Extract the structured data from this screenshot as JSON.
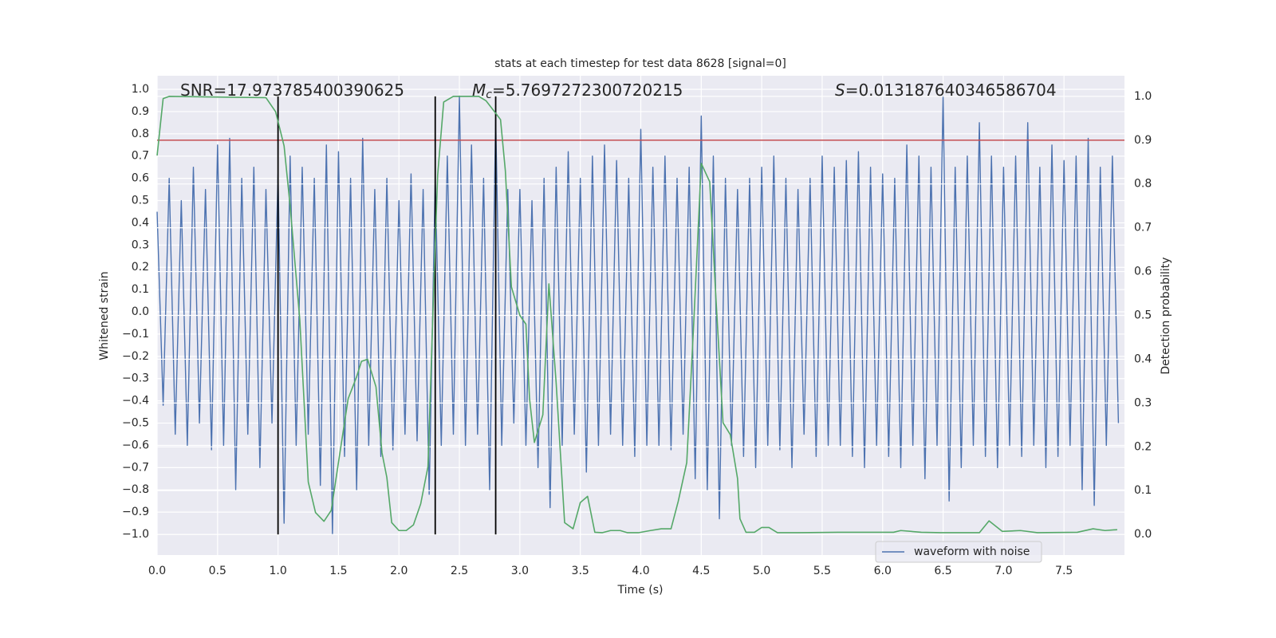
{
  "chart_data": {
    "type": "line",
    "title": "stats at each timestep for test data 8628 [signal=0]",
    "xlabel": "Time (s)",
    "ylabel": "Whitened strain",
    "y2label": "Detection probability",
    "annotations": [
      {
        "text": "SNR=17.973785400390625"
      },
      {
        "symbol": "M",
        "sub": "c",
        "text": "=5.7697272300720215"
      },
      {
        "symbol": "S",
        "text": "=0.013187640346586704"
      }
    ],
    "legend": "lower right",
    "grid": true,
    "xlim": [
      0,
      8.0
    ],
    "ylim": [
      -1.093,
      1.061
    ],
    "y2lim": [
      -0.047,
      1.047
    ],
    "xticks": [
      {
        "value": 0,
        "label": "0.0"
      },
      {
        "value": 0.5,
        "label": "0.5"
      },
      {
        "value": 1,
        "label": "1.0"
      },
      {
        "value": 1.5,
        "label": "1.5"
      },
      {
        "value": 2,
        "label": "2.0"
      },
      {
        "value": 2.5,
        "label": "2.5"
      },
      {
        "value": 3,
        "label": "3.0"
      },
      {
        "value": 3.5,
        "label": "3.5"
      },
      {
        "value": 4,
        "label": "4.0"
      },
      {
        "value": 4.5,
        "label": "4.5"
      },
      {
        "value": 5,
        "label": "5.0"
      },
      {
        "value": 5.5,
        "label": "5.5"
      },
      {
        "value": 6,
        "label": "6.0"
      },
      {
        "value": 6.5,
        "label": "6.5"
      },
      {
        "value": 7,
        "label": "7.0"
      },
      {
        "value": 7.5,
        "label": "7.5"
      }
    ],
    "yticks": [
      {
        "value": -1,
        "label": "−1.0"
      },
      {
        "value": -0.9,
        "label": "−0.9"
      },
      {
        "value": -0.8,
        "label": "−0.8"
      },
      {
        "value": -0.7,
        "label": "−0.7"
      },
      {
        "value": -0.6,
        "label": "−0.6"
      },
      {
        "value": -0.5,
        "label": "−0.5"
      },
      {
        "value": -0.4,
        "label": "−0.4"
      },
      {
        "value": -0.3,
        "label": "−0.3"
      },
      {
        "value": -0.2,
        "label": "−0.2"
      },
      {
        "value": -0.1,
        "label": "−0.1"
      },
      {
        "value": 0,
        "label": "0.0"
      },
      {
        "value": 0.1,
        "label": "0.1"
      },
      {
        "value": 0.2,
        "label": "0.2"
      },
      {
        "value": 0.3,
        "label": "0.3"
      },
      {
        "value": 0.4,
        "label": "0.4"
      },
      {
        "value": 0.5,
        "label": "0.5"
      },
      {
        "value": 0.6,
        "label": "0.6"
      },
      {
        "value": 0.7,
        "label": "0.7"
      },
      {
        "value": 0.8,
        "label": "0.8"
      },
      {
        "value": 0.9,
        "label": "0.9"
      },
      {
        "value": 1,
        "label": "1.0"
      }
    ],
    "y2ticks": [
      {
        "value": 0,
        "label": "0.0"
      },
      {
        "value": 0.1,
        "label": "0.1"
      },
      {
        "value": 0.2,
        "label": "0.2"
      },
      {
        "value": 0.3,
        "label": "0.3"
      },
      {
        "value": 0.4,
        "label": "0.4"
      },
      {
        "value": 0.5,
        "label": "0.5"
      },
      {
        "value": 0.6,
        "label": "0.6"
      },
      {
        "value": 0.7,
        "label": "0.7"
      },
      {
        "value": 0.8,
        "label": "0.8"
      },
      {
        "value": 0.9,
        "label": "0.9"
      },
      {
        "value": 1,
        "label": "1.0"
      }
    ],
    "threshold": {
      "value": 0.9,
      "color": "#c44e52",
      "axis": "y2"
    },
    "vlines": {
      "x": [
        1.0,
        2.3,
        2.8
      ],
      "range": [
        0,
        1
      ],
      "color": "#000000",
      "axis": "y2"
    },
    "series": [
      {
        "name": "waveform with noise",
        "color": "#4c72b0",
        "x": [
          0,
          0.05,
          0.1,
          0.15,
          0.2,
          0.25,
          0.3,
          0.35,
          0.4,
          0.45,
          0.5,
          0.55,
          0.6,
          0.65,
          0.7,
          0.75,
          0.8,
          0.85,
          0.9,
          0.95,
          1,
          1.05,
          1.1,
          1.15,
          1.2,
          1.25,
          1.3,
          1.35,
          1.4,
          1.45,
          1.5,
          1.55,
          1.6,
          1.65,
          1.7,
          1.75,
          1.8,
          1.85,
          1.9,
          1.95,
          2,
          2.05,
          2.1,
          2.15,
          2.2,
          2.25,
          2.3,
          2.35,
          2.4,
          2.45,
          2.5,
          2.55,
          2.6,
          2.65,
          2.7,
          2.75,
          2.8,
          2.85,
          2.9,
          2.95,
          3,
          3.05,
          3.1,
          3.15,
          3.2,
          3.25,
          3.3,
          3.35,
          3.4,
          3.45,
          3.5,
          3.55,
          3.6,
          3.65,
          3.7,
          3.75,
          3.8,
          3.85,
          3.9,
          3.95,
          4,
          4.05,
          4.1,
          4.15,
          4.2,
          4.25,
          4.3,
          4.35,
          4.4,
          4.45,
          4.5,
          4.55,
          4.6,
          4.65,
          4.7,
          4.75,
          4.8,
          4.85,
          4.9,
          4.95,
          5,
          5.05,
          5.1,
          5.15,
          5.2,
          5.25,
          5.3,
          5.35,
          5.4,
          5.45,
          5.5,
          5.55,
          5.6,
          5.65,
          5.7,
          5.75,
          5.8,
          5.85,
          5.9,
          5.95,
          6,
          6.05,
          6.1,
          6.15,
          6.2,
          6.25,
          6.3,
          6.35,
          6.4,
          6.45,
          6.5,
          6.55,
          6.6,
          6.65,
          6.7,
          6.75,
          6.8,
          6.85,
          6.9,
          6.95,
          7,
          7.05,
          7.1,
          7.15,
          7.2,
          7.25,
          7.3,
          7.35,
          7.4,
          7.45,
          7.5,
          7.55,
          7.6,
          7.65,
          7.7,
          7.75,
          7.8,
          7.85,
          7.9,
          7.95
        ],
        "values": [
          0.45,
          -0.42,
          0.6,
          -0.55,
          0.5,
          -0.6,
          0.65,
          -0.5,
          0.55,
          -0.62,
          0.75,
          -0.6,
          0.78,
          -0.8,
          0.6,
          -0.55,
          0.65,
          -0.7,
          0.55,
          -0.5,
          0.62,
          -0.95,
          0.7,
          -0.6,
          0.65,
          -0.55,
          0.6,
          -0.78,
          0.75,
          -1.0,
          0.72,
          -0.65,
          0.6,
          -0.8,
          0.78,
          -0.6,
          0.55,
          -0.65,
          0.6,
          -0.62,
          0.5,
          -0.55,
          0.62,
          -0.58,
          0.55,
          -0.82,
          0.6,
          -0.6,
          0.7,
          -0.55,
          0.97,
          -0.6,
          0.75,
          -0.55,
          0.6,
          -0.8,
          0.87,
          -0.6,
          0.55,
          -0.5,
          0.55,
          -0.6,
          0.5,
          -0.7,
          0.6,
          -0.88,
          0.65,
          -0.6,
          0.72,
          -0.55,
          0.6,
          -0.72,
          0.7,
          -0.6,
          0.75,
          -0.55,
          0.68,
          -0.6,
          0.6,
          -0.65,
          0.82,
          -0.6,
          0.65,
          -0.6,
          0.7,
          -0.62,
          0.6,
          -0.55,
          0.65,
          -0.75,
          0.88,
          -0.8,
          0.7,
          -0.93,
          0.6,
          -0.6,
          0.55,
          -0.65,
          0.6,
          -0.7,
          0.65,
          -0.6,
          0.7,
          -0.62,
          0.6,
          -0.7,
          0.55,
          -0.55,
          0.6,
          -0.65,
          0.7,
          -0.6,
          0.65,
          -0.6,
          0.68,
          -0.65,
          0.72,
          -0.7,
          0.65,
          -0.6,
          0.62,
          -0.65,
          0.6,
          -0.7,
          0.75,
          -0.6,
          0.7,
          -0.75,
          0.65,
          -0.6,
          0.97,
          -0.85,
          0.65,
          -0.7,
          0.7,
          -0.6,
          0.85,
          -0.65,
          0.7,
          -0.7,
          0.65,
          -0.6,
          0.7,
          -0.65,
          0.85,
          -0.6,
          0.65,
          -0.7,
          0.75,
          -0.65,
          0.68,
          -0.6,
          0.7,
          -0.8,
          0.78,
          -0.87,
          0.65,
          -0.6,
          0.7,
          -0.5
        ]
      },
      {
        "color": "#55a868",
        "axis": "y2",
        "x": [
          0,
          0.05,
          0.1,
          0.9,
          0.98,
          1.05,
          1.1,
          1.18,
          1.25,
          1.31,
          1.38,
          1.44,
          1.5,
          1.58,
          1.65,
          1.69,
          1.74,
          1.81,
          1.86,
          1.9,
          1.94,
          2.0,
          2.06,
          2.12,
          2.18,
          2.24,
          2.29,
          2.32,
          2.37,
          2.45,
          2.66,
          2.72,
          2.79,
          2.84,
          2.88,
          2.93,
          3.0,
          3.05,
          3.08,
          3.12,
          3.19,
          3.24,
          3.3,
          3.37,
          3.44,
          3.5,
          3.56,
          3.62,
          3.68,
          3.75,
          3.83,
          3.89,
          3.98,
          4.08,
          4.17,
          4.25,
          4.31,
          4.38,
          4.44,
          4.5,
          4.57,
          4.62,
          4.68,
          4.74,
          4.8,
          4.82,
          4.87,
          4.94,
          5.0,
          5.06,
          5.13,
          5.3,
          5.63,
          5.89,
          6.09,
          6.15,
          6.32,
          6.48,
          6.8,
          6.88,
          6.99,
          7.14,
          7.28,
          7.61,
          7.74,
          7.84,
          7.94
        ],
        "values": [
          0.865,
          0.995,
          1.0,
          0.997,
          0.965,
          0.887,
          0.75,
          0.49,
          0.12,
          0.05,
          0.03,
          0.055,
          0.165,
          0.31,
          0.36,
          0.395,
          0.4,
          0.337,
          0.186,
          0.13,
          0.027,
          0.009,
          0.009,
          0.022,
          0.07,
          0.155,
          0.583,
          0.82,
          0.987,
          1.0,
          1.0,
          0.99,
          0.965,
          0.947,
          0.83,
          0.565,
          0.5,
          0.48,
          0.31,
          0.21,
          0.273,
          0.572,
          0.346,
          0.027,
          0.013,
          0.073,
          0.087,
          0.005,
          0.004,
          0.009,
          0.009,
          0.004,
          0.004,
          0.009,
          0.013,
          0.013,
          0.076,
          0.164,
          0.495,
          0.847,
          0.805,
          0.546,
          0.255,
          0.228,
          0.128,
          0.036,
          0.005,
          0.005,
          0.016,
          0.016,
          0.004,
          0.004,
          0.005,
          0.005,
          0.005,
          0.009,
          0.005,
          0.004,
          0.004,
          0.031,
          0.007,
          0.009,
          0.004,
          0.005,
          0.013,
          0.009,
          0.011
        ]
      }
    ]
  }
}
